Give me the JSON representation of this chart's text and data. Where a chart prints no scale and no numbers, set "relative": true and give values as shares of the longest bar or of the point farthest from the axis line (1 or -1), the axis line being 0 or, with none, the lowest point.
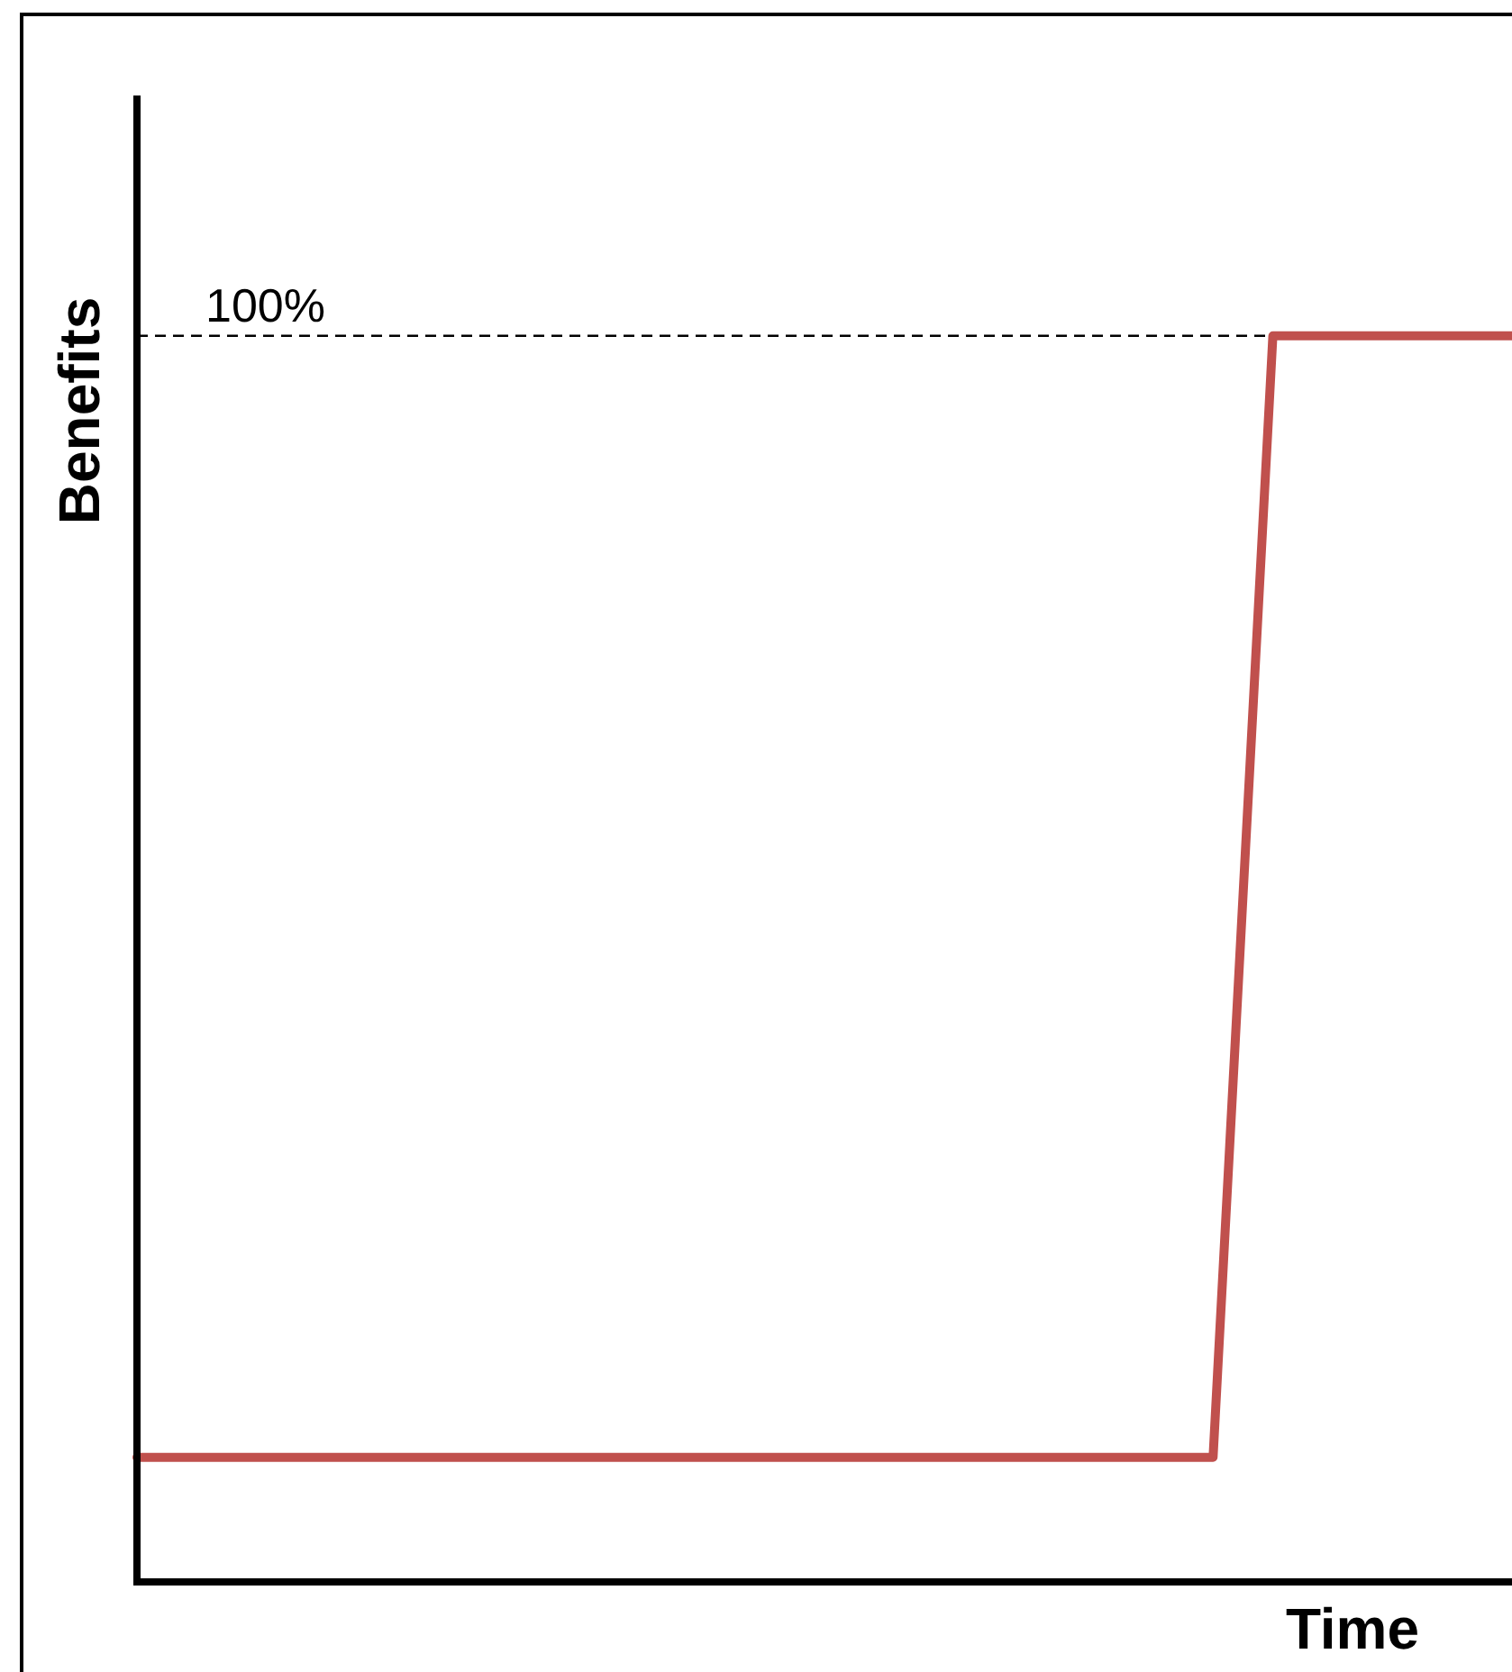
{
  "chart_data": {
    "type": "line",
    "relative": true,
    "ylabel": "Benefits",
    "xlabel": "Time",
    "categories": [
      null,
      null,
      null,
      null,
      null,
      null,
      null,
      null,
      null,
      null,
      null,
      null,
      null,
      null,
      null,
      null,
      null,
      null,
      null,
      null,
      null,
      null,
      null,
      null
    ],
    "series": [
      {
        "color": "#c0504d",
        "values": [
          0.1,
          0.1,
          0.1,
          0.1,
          0.1,
          0.1,
          0.1,
          0.1,
          0.1,
          0.1,
          0.1,
          0.1,
          0.1,
          0.1,
          0.1,
          0.1,
          0.1,
          0.1,
          0.1,
          1,
          1,
          1,
          1,
          1
        ]
      }
    ],
    "ref_lines": [
      {
        "axis": "y",
        "value": 1,
        "label": "100%",
        "line_style": "dashed",
        "color": "#000000"
      }
    ],
    "legend": false,
    "tick_labels": false,
    "marker": "none",
    "line_style": "solid"
  }
}
